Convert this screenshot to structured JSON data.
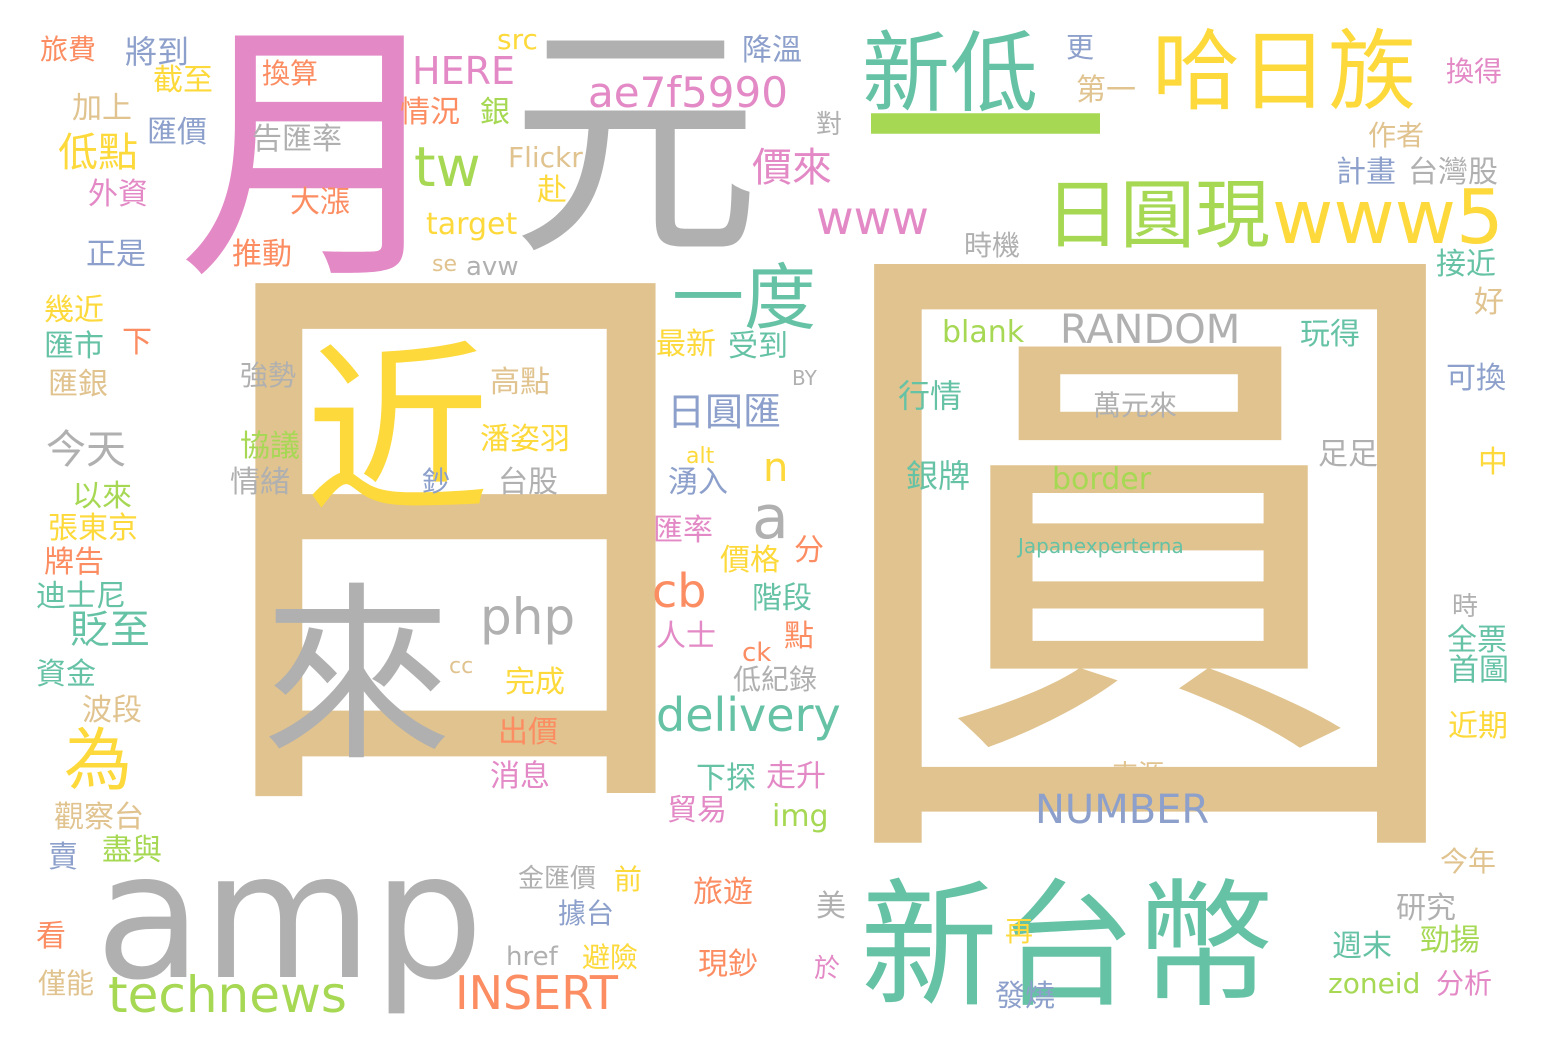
{
  "words": [
    {
      "text": "日",
      "color": "#e0c38f",
      "name": "word-ri-large"
    },
    {
      "text": "圓",
      "color": "#e0c38f",
      "name": "word-yuan-large"
    },
    {
      "text": "月",
      "color": "#e389c6",
      "name": "word-yue"
    },
    {
      "text": "元",
      "color": "#b0b0b0",
      "name": "word-yuan-currency"
    },
    {
      "text": "近",
      "color": "#fdd93b",
      "name": "word-jin"
    },
    {
      "text": "來",
      "color": "#b0b0b0",
      "name": "word-lai"
    },
    {
      "text": "amp",
      "color": "#b0b0b0",
      "name": "word-amp"
    },
    {
      "text": "新台幣",
      "color": "#66c2a5",
      "name": "word-new-taiwan-dollar"
    },
    {
      "text": "新低",
      "color": "#66c2a5",
      "name": "word-new-low"
    },
    {
      "text": "哈日族",
      "color": "#fdd93b",
      "name": "word-hari-zu"
    },
    {
      "text": "一",
      "color": "#a6d854",
      "name": "word-yi"
    },
    {
      "text": "日圓現",
      "color": "#a6d854",
      "name": "word-yen-cash"
    },
    {
      "text": "www5",
      "color": "#fdd93b",
      "name": "word-www5"
    },
    {
      "text": "ae7f5990",
      "color": "#e389c6",
      "name": "word-ae7f5990"
    },
    {
      "text": "一度",
      "color": "#66c2a5",
      "name": "word-once"
    },
    {
      "text": "www",
      "color": "#e389c6",
      "name": "word-www"
    },
    {
      "text": "tw",
      "color": "#a6d854",
      "name": "word-tw"
    },
    {
      "text": "HERE",
      "color": "#e389c6",
      "name": "word-here"
    },
    {
      "text": "technews",
      "color": "#a6d854",
      "name": "word-technews"
    },
    {
      "text": "INSERT",
      "color": "#fc8d62",
      "name": "word-insert"
    },
    {
      "text": "delivery",
      "color": "#66c2a5",
      "name": "word-delivery"
    },
    {
      "text": "NUMBER",
      "color": "#8da0cb",
      "name": "word-number"
    },
    {
      "text": "RANDOM",
      "color": "#b0b0b0",
      "name": "word-random"
    },
    {
      "text": "為",
      "color": "#fdd93b",
      "name": "word-wei"
    },
    {
      "text": "a",
      "color": "#b0b0b0",
      "name": "word-a"
    },
    {
      "text": "php",
      "color": "#b0b0b0",
      "name": "word-php"
    },
    {
      "text": "cb",
      "color": "#fc8d62",
      "name": "word-cb"
    },
    {
      "text": "n",
      "color": "#fdd93b",
      "name": "word-n"
    },
    {
      "text": "日圓匯",
      "color": "#8da0cb",
      "name": "word-yen-exchange"
    },
    {
      "text": "價來",
      "color": "#e389c6",
      "name": "word-price-come"
    },
    {
      "text": "貶至",
      "color": "#66c2a5",
      "name": "word-depreciate-to"
    },
    {
      "text": "低點",
      "color": "#fdd93b",
      "name": "word-low-point"
    },
    {
      "text": "今天",
      "color": "#b0b0b0",
      "name": "word-today"
    },
    {
      "text": "換算",
      "color": "#fc8d62",
      "name": "word-convert"
    },
    {
      "text": "告匯率",
      "color": "#b0b0b0",
      "name": "word-announce-rate"
    },
    {
      "text": "大漲",
      "color": "#fc8d62",
      "name": "word-surge"
    },
    {
      "text": "推動",
      "color": "#fc8d62",
      "name": "word-promote"
    },
    {
      "text": "旅遊",
      "color": "#fc8d62",
      "name": "word-travel"
    },
    {
      "text": "現鈔",
      "color": "#fc8d62",
      "name": "word-banknote"
    },
    {
      "text": "強勢",
      "color": "#b0b0b0",
      "name": "word-strong"
    },
    {
      "text": "協議",
      "color": "#a6d854",
      "name": "word-agreement"
    },
    {
      "text": "情緒",
      "color": "#b0b0b0",
      "name": "word-sentiment"
    },
    {
      "text": "鈔",
      "color": "#8da0cb",
      "name": "word-chao"
    },
    {
      "text": "高點",
      "color": "#e0c38f",
      "name": "word-high-point"
    },
    {
      "text": "潘姿羽",
      "color": "#fdd93b",
      "name": "word-pan-ziyu"
    },
    {
      "text": "台股",
      "color": "#b0b0b0",
      "name": "word-tw-stock"
    },
    {
      "text": "萬元來",
      "color": "#b0b0b0",
      "name": "word-wan-yuan-lai"
    },
    {
      "text": "Japanexperterna",
      "color": "#66c2a5",
      "name": "word-japanexperterna"
    },
    {
      "text": "blank",
      "color": "#a6d854",
      "name": "word-blank"
    },
    {
      "text": "行情",
      "color": "#66c2a5",
      "name": "word-market"
    },
    {
      "text": "銀牌",
      "color": "#66c2a5",
      "name": "word-silver-medal"
    },
    {
      "text": "border",
      "color": "#a6d854",
      "name": "word-border"
    },
    {
      "text": "旅費",
      "color": "#fc8d62",
      "name": "word-travel-cost"
    },
    {
      "text": "將到",
      "color": "#8da0cb",
      "name": "word-will-reach"
    },
    {
      "text": "截至",
      "color": "#fdd93b",
      "name": "word-as-of"
    },
    {
      "text": "加上",
      "color": "#e0c38f",
      "name": "word-plus"
    },
    {
      "text": "匯價",
      "color": "#8da0cb",
      "name": "word-exchange-price"
    },
    {
      "text": "外資",
      "color": "#e389c6",
      "name": "word-foreign-capital"
    },
    {
      "text": "正是",
      "color": "#8da0cb",
      "name": "word-exactly"
    },
    {
      "text": "幾近",
      "color": "#fdd93b",
      "name": "word-nearly"
    },
    {
      "text": "匯市",
      "color": "#66c2a5",
      "name": "word-fx-market"
    },
    {
      "text": "下",
      "color": "#fc8d62",
      "name": "word-xia"
    },
    {
      "text": "匯銀",
      "color": "#e0c38f",
      "name": "word-fx-bank"
    },
    {
      "text": "以來",
      "color": "#a6d854",
      "name": "word-since"
    },
    {
      "text": "張東京",
      "color": "#fdd93b",
      "name": "word-zhang-tokyo"
    },
    {
      "text": "牌告",
      "color": "#fc8d62",
      "name": "word-posted"
    },
    {
      "text": "迪士尼",
      "color": "#66c2a5",
      "name": "word-disney"
    },
    {
      "text": "資金",
      "color": "#66c2a5",
      "name": "word-funds"
    },
    {
      "text": "波段",
      "color": "#e0c38f",
      "name": "word-wave"
    },
    {
      "text": "觀察台",
      "color": "#e0c38f",
      "name": "word-observation"
    },
    {
      "text": "賣",
      "color": "#8da0cb",
      "name": "word-sell"
    },
    {
      "text": "盡與",
      "color": "#a6d854",
      "name": "word-jin-yu"
    },
    {
      "text": "看",
      "color": "#fc8d62",
      "name": "word-look"
    },
    {
      "text": "僅能",
      "color": "#e0c38f",
      "name": "word-only-can"
    },
    {
      "text": "src",
      "color": "#fdd93b",
      "name": "word-src"
    },
    {
      "text": "情況",
      "color": "#fc8d62",
      "name": "word-situation"
    },
    {
      "text": "銀",
      "color": "#a6d854",
      "name": "word-yin"
    },
    {
      "text": "Flickr",
      "color": "#e0c38f",
      "name": "word-flickr"
    },
    {
      "text": "赴",
      "color": "#fdd93b",
      "name": "word-go-to"
    },
    {
      "text": "target",
      "color": "#fdd93b",
      "name": "word-target"
    },
    {
      "text": "se",
      "color": "#e0c38f",
      "name": "word-se"
    },
    {
      "text": "avw",
      "color": "#b0b0b0",
      "name": "word-avw"
    },
    {
      "text": "降溫",
      "color": "#8da0cb",
      "name": "word-cool-down"
    },
    {
      "text": "更",
      "color": "#8da0cb",
      "name": "word-more"
    },
    {
      "text": "第一",
      "color": "#e0c38f",
      "name": "word-first"
    },
    {
      "text": "對",
      "color": "#b0b0b0",
      "name": "word-dui"
    },
    {
      "text": "換得",
      "color": "#e389c6",
      "name": "word-get-in-exchange"
    },
    {
      "text": "作者",
      "color": "#e0c38f",
      "name": "word-author"
    },
    {
      "text": "計畫",
      "color": "#8da0cb",
      "name": "word-plan"
    },
    {
      "text": "台灣股",
      "color": "#b0b0b0",
      "name": "word-tw-shares"
    },
    {
      "text": "時機",
      "color": "#b0b0b0",
      "name": "word-timing"
    },
    {
      "text": "接近",
      "color": "#66c2a5",
      "name": "word-approach"
    },
    {
      "text": "好",
      "color": "#e0c38f",
      "name": "word-good"
    },
    {
      "text": "玩得",
      "color": "#66c2a5",
      "name": "word-play"
    },
    {
      "text": "可換",
      "color": "#8da0cb",
      "name": "word-exchangeable"
    },
    {
      "text": "BY",
      "color": "#b0b0b0",
      "name": "word-by"
    },
    {
      "text": "足足",
      "color": "#b0b0b0",
      "name": "word-fully"
    },
    {
      "text": "中",
      "color": "#fdd93b",
      "name": "word-zhong"
    },
    {
      "text": "最新",
      "color": "#fdd93b",
      "name": "word-latest"
    },
    {
      "text": "受到",
      "color": "#66c2a5",
      "name": "word-affected"
    },
    {
      "text": "alt",
      "color": "#fdd93b",
      "name": "word-alt"
    },
    {
      "text": "湧入",
      "color": "#8da0cb",
      "name": "word-flood-in"
    },
    {
      "text": "匯率",
      "color": "#e389c6",
      "name": "word-exchange-rate"
    },
    {
      "text": "價格",
      "color": "#fdd93b",
      "name": "word-price"
    },
    {
      "text": "分",
      "color": "#fc8d62",
      "name": "word-fen"
    },
    {
      "text": "階段",
      "color": "#66c2a5",
      "name": "word-stage"
    },
    {
      "text": "點",
      "color": "#fc8d62",
      "name": "word-dian"
    },
    {
      "text": "人士",
      "color": "#e389c6",
      "name": "word-people"
    },
    {
      "text": "ck",
      "color": "#fc8d62",
      "name": "word-ck"
    },
    {
      "text": "低紀錄",
      "color": "#b0b0b0",
      "name": "word-record-low"
    },
    {
      "text": "cc",
      "color": "#e0c38f",
      "name": "word-cc"
    },
    {
      "text": "完成",
      "color": "#fdd93b",
      "name": "word-complete"
    },
    {
      "text": "出價",
      "color": "#fc8d62",
      "name": "word-bid"
    },
    {
      "text": "消息",
      "color": "#e389c6",
      "name": "word-news"
    },
    {
      "text": "下探",
      "color": "#66c2a5",
      "name": "word-dip"
    },
    {
      "text": "走升",
      "color": "#e389c6",
      "name": "word-rise"
    },
    {
      "text": "貿易",
      "color": "#e389c6",
      "name": "word-trade"
    },
    {
      "text": "img",
      "color": "#a6d854",
      "name": "word-img"
    },
    {
      "text": "金匯價",
      "color": "#b0b0b0",
      "name": "word-gold-price"
    },
    {
      "text": "前",
      "color": "#fdd93b",
      "name": "word-before"
    },
    {
      "text": "據台",
      "color": "#8da0cb",
      "name": "word-per-taiwan"
    },
    {
      "text": "href",
      "color": "#b0b0b0",
      "name": "word-href"
    },
    {
      "text": "避險",
      "color": "#fdd93b",
      "name": "word-hedge"
    },
    {
      "text": "美",
      "color": "#b0b0b0",
      "name": "word-usa"
    },
    {
      "text": "於",
      "color": "#e389c6",
      "name": "word-yu"
    },
    {
      "text": "再",
      "color": "#fdd93b",
      "name": "word-again"
    },
    {
      "text": "發燒",
      "color": "#8da0cb",
      "name": "word-fever"
    },
    {
      "text": "來源",
      "color": "#e0c38f",
      "name": "word-source"
    },
    {
      "text": "時",
      "color": "#b0b0b0",
      "name": "word-shi"
    },
    {
      "text": "全票",
      "color": "#66c2a5",
      "name": "word-full-ticket"
    },
    {
      "text": "首圖",
      "color": "#66c2a5",
      "name": "word-cover-image"
    },
    {
      "text": "近期",
      "color": "#fdd93b",
      "name": "word-recently"
    },
    {
      "text": "今年",
      "color": "#e0c38f",
      "name": "word-this-year"
    },
    {
      "text": "研究",
      "color": "#b0b0b0",
      "name": "word-research"
    },
    {
      "text": "週末",
      "color": "#66c2a5",
      "name": "word-weekend"
    },
    {
      "text": "勁揚",
      "color": "#a6d854",
      "name": "word-strong-rise"
    },
    {
      "text": "zoneid",
      "color": "#a6d854",
      "name": "word-zoneid"
    },
    {
      "text": "分析",
      "color": "#e389c6",
      "name": "word-analysis"
    }
  ]
}
